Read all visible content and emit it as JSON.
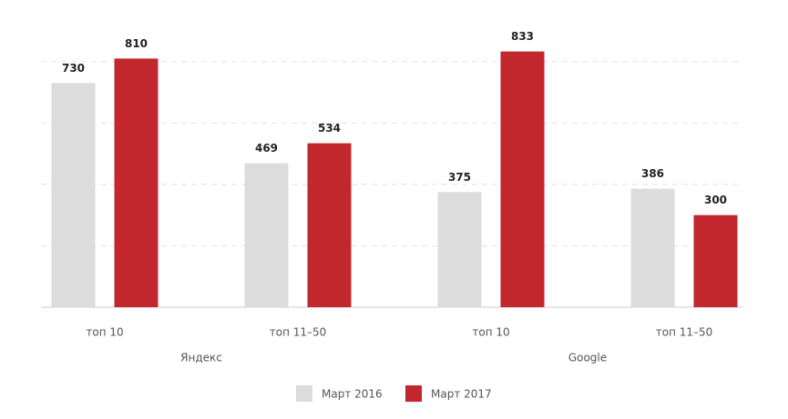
{
  "chart_data": {
    "type": "bar",
    "categories": [
      "топ 10",
      "топ 11–50",
      "топ 10",
      "топ 11–50"
    ],
    "groups": [
      "Яндекс",
      "Google"
    ],
    "series": [
      {
        "name": "Март 2016",
        "color": "#dcdcdc",
        "values": [
          730,
          469,
          375,
          386
        ]
      },
      {
        "name": "Март 2017",
        "color": "#c1272d",
        "values": [
          810,
          534,
          833,
          300
        ]
      }
    ],
    "ylim": [
      0,
      900
    ],
    "yticks": [
      0,
      200,
      400,
      600,
      800
    ],
    "grid": true
  }
}
